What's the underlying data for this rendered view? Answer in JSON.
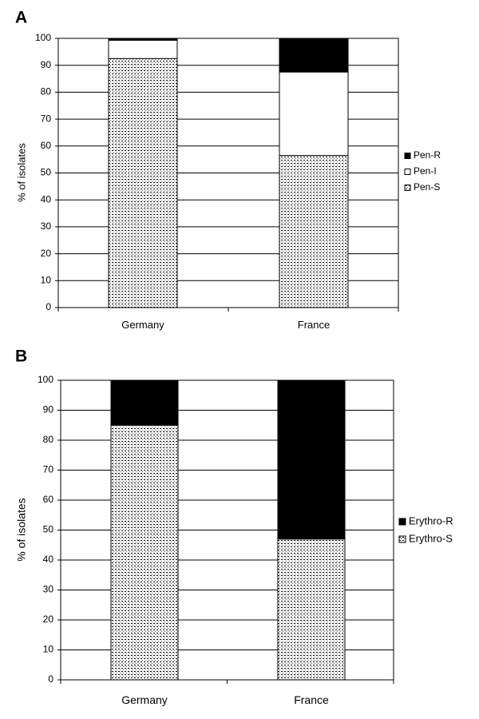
{
  "chart_data": [
    {
      "panel": "A",
      "type": "bar",
      "stacked": true,
      "categories": [
        "Germany",
        "France"
      ],
      "series": [
        {
          "name": "Pen-S",
          "values": [
            92.5,
            56.5
          ],
          "fill": "dotted"
        },
        {
          "name": "Pen-I",
          "values": [
            6.8,
            31.0
          ],
          "fill": "#ffffff"
        },
        {
          "name": "Pen-R",
          "values": [
            0.7,
            12.5
          ],
          "fill": "#000000"
        }
      ],
      "legend_order": [
        "Pen-R",
        "Pen-I",
        "Pen-S"
      ],
      "ylabel": "% of isolates",
      "xlabel": "",
      "ylim": [
        0,
        100
      ],
      "yticks": [
        0,
        10,
        20,
        30,
        40,
        50,
        60,
        70,
        80,
        90,
        100
      ],
      "grid": true,
      "legend_position": "right"
    },
    {
      "panel": "B",
      "type": "bar",
      "stacked": true,
      "categories": [
        "Germany",
        "France"
      ],
      "series": [
        {
          "name": "Erythro-S",
          "values": [
            85,
            47
          ],
          "fill": "dotted"
        },
        {
          "name": "Erythro-R",
          "values": [
            15,
            53
          ],
          "fill": "#000000"
        }
      ],
      "legend_order": [
        "Erythro-R",
        "Erythro-S"
      ],
      "ylabel": "% of isolates",
      "xlabel": "",
      "ylim": [
        0,
        100
      ],
      "yticks": [
        0,
        10,
        20,
        30,
        40,
        50,
        60,
        70,
        80,
        90,
        100
      ],
      "grid": true,
      "legend_position": "right"
    }
  ]
}
